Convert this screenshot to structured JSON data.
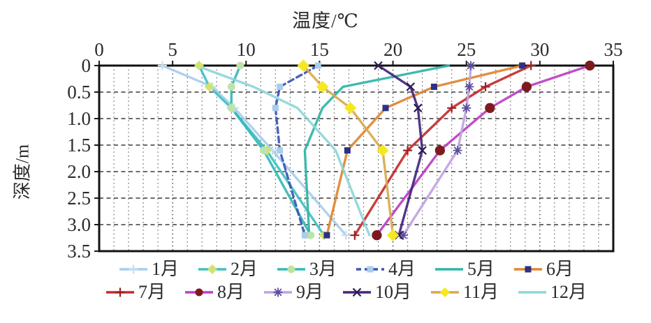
{
  "chart_data": {
    "type": "line",
    "title": "温度/℃",
    "ylabel": "深度/m",
    "xlabel": "",
    "xlim": [
      0,
      35
    ],
    "ylim": [
      0,
      3.5
    ],
    "x_ticks": [
      "0",
      "5",
      "10",
      "15",
      "20",
      "25",
      "30",
      "35"
    ],
    "y_ticks": [
      "0",
      "0.5",
      "1.0",
      "1.5",
      "2.0",
      "2.5",
      "3.0",
      "3.5"
    ],
    "grid": "dashed, vertical every 1°C, horizontal every 0.5 m",
    "legend_position": "bottom, two rows",
    "depths_m": [
      0,
      0.4,
      0.8,
      1.6,
      3.2
    ],
    "series": [
      {
        "name": "1月",
        "color": "#a9cdea",
        "marker": "plus",
        "marker_color": "#c8def2",
        "dashed": false,
        "values": [
          4.3,
          7.7,
          9.2,
          11.8,
          16.8
        ]
      },
      {
        "name": "2月",
        "color": "#3fc0c1",
        "marker": "diamond",
        "marker_color": "#d0e36e",
        "dashed": false,
        "values": [
          6.8,
          7.5,
          9.0,
          11.4,
          15.3
        ]
      },
      {
        "name": "3月",
        "color": "#33bab7",
        "marker": "circle",
        "marker_color": "#bce4a8",
        "dashed": false,
        "values": [
          9.6,
          9.0,
          9.0,
          11.2,
          14.4
        ]
      },
      {
        "name": "4月",
        "color": "#3a55b8",
        "marker": "square",
        "marker_color": "#a9cdea",
        "dashed": true,
        "values": [
          14.9,
          12.3,
          12.0,
          12.3,
          14.0
        ]
      },
      {
        "name": "5月",
        "color": "#2eb5a7",
        "marker": "none",
        "marker_color": "#2eb5a7",
        "dashed": false,
        "values": [
          23.8,
          16.6,
          15.2,
          14.0,
          14.3
        ]
      },
      {
        "name": "6月",
        "color": "#e0862f",
        "marker": "square",
        "marker_color": "#2e3086",
        "dashed": false,
        "values": [
          28.8,
          22.8,
          19.5,
          16.9,
          15.5
        ]
      },
      {
        "name": "7月",
        "color": "#c42b2b",
        "marker": "plus",
        "marker_color": "#9e1f1f",
        "dashed": false,
        "values": [
          29.4,
          26.3,
          24.0,
          21.0,
          17.4
        ]
      },
      {
        "name": "8月",
        "color": "#bc3fc4",
        "marker": "circle",
        "marker_color": "#7d1a20",
        "dashed": false,
        "values": [
          33.4,
          29.1,
          26.6,
          23.2,
          18.9
        ]
      },
      {
        "name": "9月",
        "color": "#bfa4df",
        "marker": "star",
        "marker_color": "#5b4c9e",
        "dashed": false,
        "values": [
          25.3,
          25.2,
          25.0,
          24.4,
          20.7
        ]
      },
      {
        "name": "10月",
        "color": "#46257d",
        "marker": "x",
        "marker_color": "#2a1a52",
        "dashed": false,
        "values": [
          19.0,
          21.2,
          21.7,
          22.0,
          20.4
        ]
      },
      {
        "name": "11月",
        "color": "#d9a94e",
        "marker": "diamond",
        "marker_color": "#f6e81f",
        "dashed": false,
        "values": [
          13.9,
          15.2,
          17.1,
          19.3,
          20.0
        ]
      },
      {
        "name": "12月",
        "color": "#8ed6d8",
        "marker": "none",
        "marker_color": "#8ed6d8",
        "dashed": false,
        "values": [
          6.6,
          10.5,
          13.5,
          16.1,
          18.4
        ]
      }
    ]
  }
}
